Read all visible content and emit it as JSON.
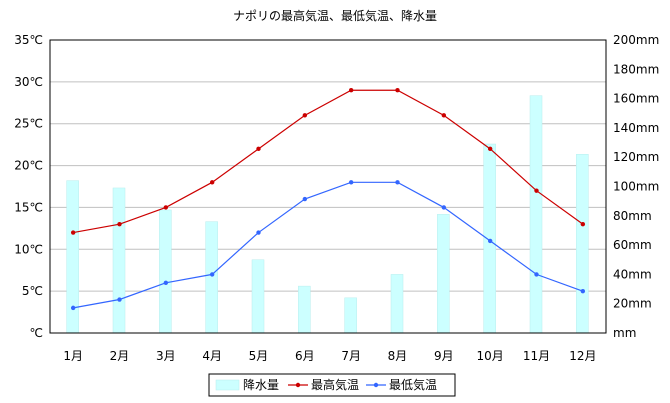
{
  "chart_data": {
    "type": "bar+line",
    "title": "ナポリの最高気温、最低気温、降水量",
    "categories": [
      "1月",
      "2月",
      "3月",
      "4月",
      "5月",
      "6月",
      "7月",
      "8月",
      "9月",
      "10月",
      "11月",
      "12月"
    ],
    "y_left": {
      "unit": "℃",
      "ylim": [
        0,
        35
      ],
      "ticks": [
        "℃",
        "5℃",
        "10℃",
        "15℃",
        "20℃",
        "25℃",
        "30℃",
        "35℃"
      ]
    },
    "y_right": {
      "unit": "mm",
      "ylim": [
        0,
        200
      ],
      "ticks": [
        "mm",
        "20mm",
        "40mm",
        "60mm",
        "80mm",
        "100mm",
        "120mm",
        "140mm",
        "160mm",
        "180mm",
        "200mm"
      ]
    },
    "series": [
      {
        "name": "降水量",
        "type": "bar",
        "axis": "right",
        "color": "#ccffff",
        "values": [
          104,
          99,
          84,
          76,
          50,
          32,
          24,
          40,
          81,
          129,
          162,
          122
        ]
      },
      {
        "name": "最高気温",
        "type": "line",
        "axis": "left",
        "color": "#cc0000",
        "values": [
          12,
          13,
          15,
          18,
          22,
          26,
          29,
          29,
          26,
          22,
          17,
          13
        ]
      },
      {
        "name": "最低気温",
        "type": "line",
        "axis": "left",
        "color": "#3366ff",
        "values": [
          3,
          4,
          6,
          7,
          12,
          16,
          18,
          18,
          15,
          11,
          7,
          5
        ]
      }
    ],
    "grid": "horizontal",
    "legend_position": "bottom"
  }
}
